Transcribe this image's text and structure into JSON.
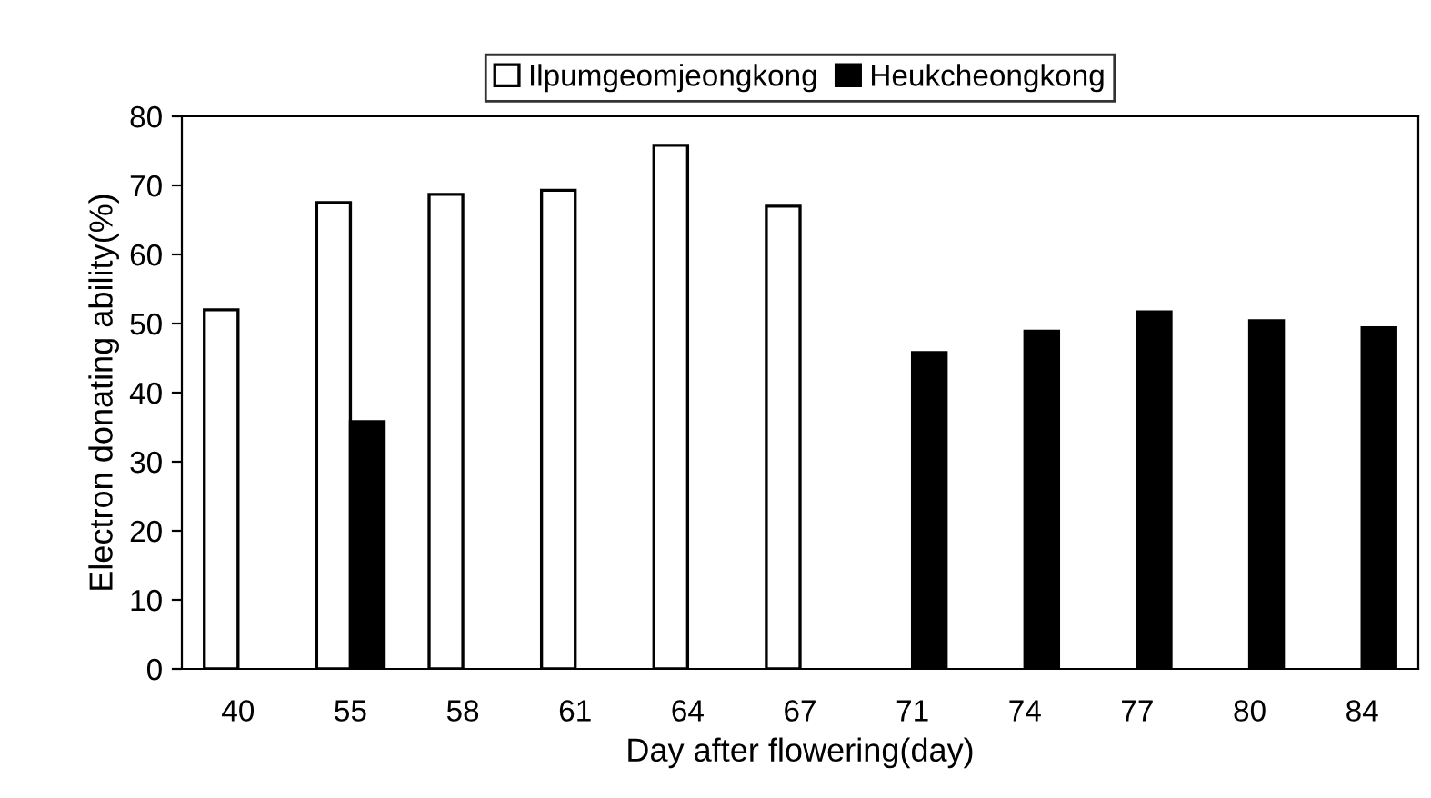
{
  "chart_data": {
    "type": "bar",
    "xlabel": "Day after flowering(day)",
    "ylabel": "Electron donating ability(%)",
    "categories": [
      "40",
      "55",
      "58",
      "61",
      "64",
      "67",
      "71",
      "74",
      "77",
      "80",
      "84"
    ],
    "series": [
      {
        "name": "Ilpumgeomjeongkong",
        "color": "#ffffff",
        "values": [
          52,
          67.5,
          68.7,
          69.3,
          75.8,
          67,
          null,
          null,
          null,
          null,
          null
        ]
      },
      {
        "name": "Heukcheongkong",
        "color": "#000000",
        "values": [
          null,
          35.8,
          null,
          null,
          null,
          null,
          45.8,
          48.9,
          51.7,
          50.4,
          49.4
        ]
      }
    ],
    "ylim": [
      0,
      80
    ],
    "yticks": [
      0,
      10,
      20,
      30,
      40,
      50,
      60,
      70,
      80
    ],
    "grid": false,
    "legend": "top"
  }
}
